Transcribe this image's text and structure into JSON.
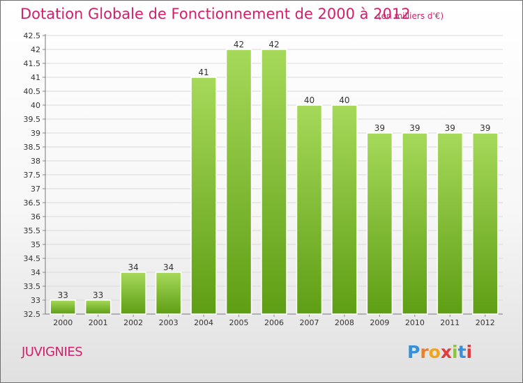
{
  "title": "Dotation Globale de Fonctionnement de 2000 à 2012",
  "subtitle": "(en milliers d'€)",
  "commune": "JUVIGNIES",
  "logo": {
    "text": "Proxiti",
    "colors": [
      "#3a8fd6",
      "#e8812a",
      "#f0a51a",
      "#e23b3b",
      "#8bc43f",
      "#3a8fd6",
      "#e23b3b"
    ]
  },
  "colors": {
    "bar_top": "#a6d95a",
    "bar_bottom": "#5e9e14",
    "title": "#d21f6a"
  },
  "chart_data": {
    "type": "bar",
    "categories": [
      "2000",
      "2001",
      "2002",
      "2003",
      "2004",
      "2005",
      "2006",
      "2007",
      "2008",
      "2009",
      "2010",
      "2011",
      "2012"
    ],
    "values": [
      33,
      33,
      34,
      34,
      41,
      42,
      42,
      40,
      40,
      39,
      39,
      39,
      39
    ],
    "data_labels": [
      "33",
      "33",
      "34",
      "34",
      "41",
      "42",
      "42",
      "40",
      "40",
      "39",
      "39",
      "39",
      "39"
    ],
    "ylim": [
      32.5,
      42.5
    ],
    "yticks": [
      "32.5",
      "33",
      "33.5",
      "34",
      "34.5",
      "35",
      "35.5",
      "36",
      "36.5",
      "37",
      "37.5",
      "38",
      "38.5",
      "39",
      "39.5",
      "40",
      "40.5",
      "41",
      "41.5",
      "42",
      "42.5"
    ],
    "grid": true
  }
}
